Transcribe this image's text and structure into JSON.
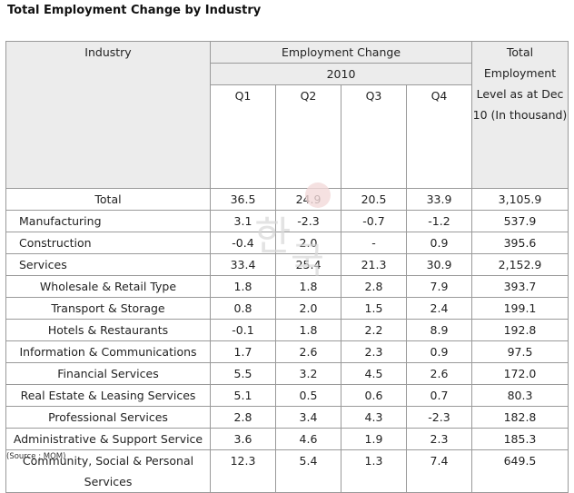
{
  "title": "Total Employment Change by Industry",
  "header": {
    "industry": "Industry",
    "employment_change": "Employment Change",
    "year": "2010",
    "quarters": [
      "Q1",
      "Q2",
      "Q3",
      "Q4"
    ],
    "total_level": "Total Employment Level as at Dec 10 (In thousand)"
  },
  "rows": [
    {
      "name": "Total",
      "q1": "36.5",
      "q2": "24.9",
      "q3": "20.5",
      "q4": "33.9",
      "level": "3,105.9"
    },
    {
      "name": "Manufacturing",
      "q1": "3.1",
      "q2": "-2.3",
      "q3": "-0.7",
      "q4": "-1.2",
      "level": "537.9"
    },
    {
      "name": "Construction",
      "q1": "-0.4",
      "q2": "2.0",
      "q3": "-",
      "q4": "0.9",
      "level": "395.6"
    },
    {
      "name": "Services",
      "q1": "33.4",
      "q2": "25.4",
      "q3": "21.3",
      "q4": "30.9",
      "level": "2,152.9"
    },
    {
      "name": "Wholesale & Retail Type",
      "q1": "1.8",
      "q2": "1.8",
      "q3": "2.8",
      "q4": "7.9",
      "level": "393.7"
    },
    {
      "name": "Transport & Storage",
      "q1": "0.8",
      "q2": "2.0",
      "q3": "1.5",
      "q4": "2.4",
      "level": "199.1"
    },
    {
      "name": "Hotels & Restaurants",
      "q1": "-0.1",
      "q2": "1.8",
      "q3": "2.2",
      "q4": "8.9",
      "level": "192.8"
    },
    {
      "name": "Information & Communications",
      "q1": "1.7",
      "q2": "2.6",
      "q3": "2.3",
      "q4": "0.9",
      "level": "97.5"
    },
    {
      "name": "Financial Services",
      "q1": "5.5",
      "q2": "3.2",
      "q3": "4.5",
      "q4": "2.6",
      "level": "172.0"
    },
    {
      "name": "Real Estate & Leasing Services",
      "q1": "5.1",
      "q2": "0.5",
      "q3": "0.6",
      "q4": "0.7",
      "level": "80.3"
    },
    {
      "name": "Professional Services",
      "q1": "2.8",
      "q2": "3.4",
      "q3": "4.3",
      "q4": "-2.3",
      "level": "182.8"
    },
    {
      "name": "Administrative & Support Service",
      "q1": "3.6",
      "q2": "4.6",
      "q3": "1.9",
      "q4": "2.3",
      "level": "185.3"
    },
    {
      "name": "Community, Social & Personal Services",
      "q1": "12.3",
      "q2": "5.4",
      "q3": "1.3",
      "q4": "7.4",
      "level": "649.5"
    }
  ],
  "source": "(Source : MOM)"
}
